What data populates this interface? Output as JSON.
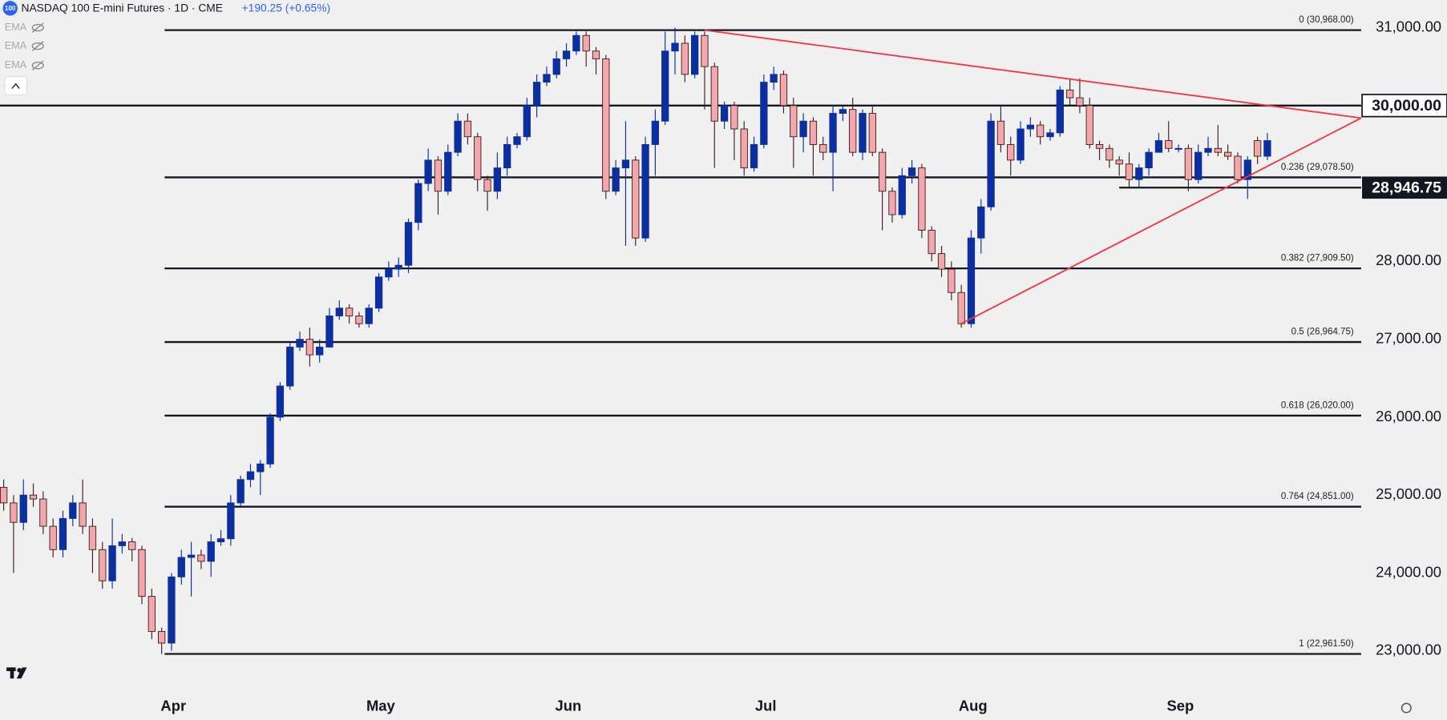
{
  "header": {
    "symbol_icon": "100",
    "title": "NASDAQ 100 E-mini Futures · 1D · CME",
    "change": "+190.25 (+0.65%)",
    "indicators": [
      "EMA",
      "EMA",
      "EMA"
    ]
  },
  "chart_data": {
    "type": "candlestick",
    "categories": [
      null,
      null,
      null,
      null,
      null,
      null,
      null,
      null,
      null,
      null,
      null,
      null,
      null,
      null,
      null,
      null,
      null,
      "Apr",
      null,
      null,
      null,
      null,
      null,
      null,
      null,
      null,
      null,
      null,
      null,
      null,
      null,
      null,
      null,
      null,
      null,
      null,
      null,
      null,
      "May",
      null,
      null,
      null,
      null,
      null,
      null,
      null,
      null,
      null,
      null,
      null,
      null,
      null,
      null,
      null,
      null,
      null,
      null,
      "Jun",
      null,
      null,
      null,
      null,
      null,
      null,
      null,
      null,
      null,
      null,
      null,
      null,
      null,
      null,
      null,
      null,
      null,
      null,
      null,
      "Jul",
      null,
      null,
      null,
      null,
      null,
      null,
      null,
      null,
      null,
      null,
      null,
      null,
      null,
      null,
      null,
      null,
      null,
      null,
      null,
      null,
      "Aug",
      null,
      null,
      null,
      null,
      null,
      null,
      null,
      null,
      null,
      null,
      null,
      null,
      null,
      null,
      null,
      null,
      null,
      null,
      null,
      null,
      "Sep",
      null,
      null,
      null,
      null,
      null,
      null,
      null,
      null,
      null
    ],
    "open": [
      25100,
      24900,
      24650,
      25000,
      24950,
      24600,
      24300,
      24700,
      24900,
      24600,
      24300,
      23900,
      24350,
      24400,
      24300,
      23700,
      23250,
      23100,
      23950,
      24200,
      24230,
      24150,
      24400,
      24440,
      24900,
      25200,
      25300,
      25400,
      26000,
      26400,
      26900,
      27000,
      26800,
      26900,
      27300,
      27400,
      27300,
      27200,
      27400,
      27800,
      27900,
      27950,
      28500,
      29000,
      29300,
      28900,
      29400,
      29800,
      29600,
      29050,
      28900,
      29200,
      29500,
      29600,
      30000,
      30300,
      30400,
      30600,
      30700,
      30900,
      30700,
      30600,
      28900,
      29200,
      29300,
      28300,
      29500,
      29800,
      30700,
      30800,
      30400,
      30900,
      30500,
      29800,
      30000,
      29700,
      29200,
      29500,
      30300,
      30400,
      30000,
      29600,
      29800,
      29500,
      29400,
      29900,
      29950,
      29400,
      29900,
      29400,
      28900,
      28600,
      29100,
      29200,
      28400,
      28100,
      27900,
      27600,
      27200,
      28300,
      28700,
      29800,
      29500,
      29300,
      29700,
      29750,
      29600,
      29650,
      30200,
      30100,
      30000,
      29500,
      29450,
      29300,
      29250,
      29050,
      29200,
      29400,
      29550,
      29450,
      29450,
      29050,
      29400,
      29450,
      29400,
      29350,
      29050,
      29550,
      29350
    ],
    "high": [
      25200,
      25000,
      25200,
      25150,
      25050,
      24700,
      24800,
      25000,
      25200,
      24700,
      24400,
      24700,
      24500,
      24450,
      24350,
      23800,
      23300,
      24000,
      24300,
      24400,
      24300,
      24500,
      24550,
      25000,
      25250,
      25400,
      25450,
      26050,
      26450,
      26950,
      27100,
      27150,
      27000,
      27400,
      27500,
      27450,
      27350,
      27450,
      27850,
      28000,
      28050,
      28550,
      29050,
      29450,
      29350,
      29500,
      29900,
      29900,
      29650,
      29100,
      29400,
      29600,
      29650,
      30100,
      30400,
      30500,
      30700,
      30800,
      30950,
      30950,
      30750,
      30650,
      29300,
      29800,
      29350,
      29600,
      29950,
      30950,
      31000,
      30900,
      30950,
      30950,
      30550,
      30050,
      30050,
      29800,
      29600,
      30400,
      30500,
      30450,
      30100,
      29900,
      29850,
      29600,
      30000,
      30000,
      30100,
      29950,
      30000,
      29450,
      28950,
      29200,
      29300,
      29250,
      28450,
      28200,
      28000,
      27700,
      28400,
      28800,
      29900,
      30000,
      29600,
      29800,
      29850,
      29800,
      29700,
      30250,
      30350,
      30350,
      30100,
      29550,
      29500,
      29350,
      29400,
      29250,
      29450,
      29650,
      29800,
      29500,
      29500,
      29500,
      29600,
      29750,
      29500,
      29400,
      29350,
      29600,
      29650
    ],
    "low": [
      24800,
      24000,
      24550,
      24850,
      24500,
      24200,
      24200,
      24600,
      24500,
      24000,
      23800,
      23800,
      24250,
      24150,
      23600,
      23150,
      22960,
      23000,
      23850,
      23700,
      24050,
      23950,
      24350,
      24350,
      24850,
      25100,
      25000,
      25350,
      25950,
      26350,
      26850,
      26650,
      26700,
      26900,
      27250,
      27200,
      27150,
      27150,
      27350,
      27750,
      27800,
      27850,
      28400,
      28900,
      28600,
      28850,
      29350,
      29500,
      28900,
      28650,
      28800,
      29100,
      29450,
      29550,
      29850,
      30250,
      30350,
      30500,
      30650,
      30500,
      30400,
      28800,
      28850,
      28200,
      28200,
      28250,
      29100,
      29750,
      30400,
      30300,
      30350,
      29950,
      29200,
      29700,
      29300,
      29100,
      29150,
      29450,
      30200,
      29900,
      29200,
      29400,
      29100,
      29300,
      28900,
      29800,
      29350,
      29300,
      29350,
      28400,
      28500,
      28550,
      29000,
      28300,
      28000,
      27800,
      27500,
      27150,
      27150,
      28100,
      28650,
      29400,
      29100,
      29250,
      29600,
      29500,
      29550,
      29600,
      30000,
      29900,
      29450,
      29300,
      29200,
      29100,
      28950,
      28950,
      29100,
      29400,
      29400,
      29400,
      28900,
      29000,
      29350,
      29350,
      29300,
      29000,
      28800,
      29250,
      29300
    ],
    "close": [
      24900,
      24650,
      25000,
      24950,
      24600,
      24300,
      24700,
      24900,
      24600,
      24300,
      23900,
      24350,
      24400,
      24300,
      23700,
      23250,
      23100,
      23950,
      24200,
      24230,
      24150,
      24400,
      24440,
      24900,
      25200,
      25300,
      25400,
      26000,
      26400,
      26900,
      27000,
      26800,
      26900,
      27300,
      27400,
      27300,
      27200,
      27400,
      27800,
      27900,
      27950,
      28500,
      29000,
      29300,
      28900,
      29400,
      29800,
      29600,
      29050,
      28900,
      29200,
      29500,
      29600,
      30000,
      30300,
      30400,
      30600,
      30700,
      30900,
      30700,
      30600,
      28900,
      29200,
      29300,
      28300,
      29500,
      29800,
      30700,
      30800,
      30400,
      30900,
      30500,
      29800,
      30000,
      29700,
      29200,
      29500,
      30300,
      30400,
      30000,
      29600,
      29800,
      29500,
      29400,
      29900,
      29950,
      29400,
      29900,
      29400,
      28900,
      28600,
      29100,
      29200,
      28400,
      28100,
      27900,
      27600,
      27200,
      28300,
      28700,
      29800,
      29500,
      29300,
      29700,
      29750,
      29600,
      29650,
      30200,
      30100,
      30000,
      29500,
      29450,
      29300,
      29250,
      29050,
      29200,
      29400,
      29550,
      29450,
      29450,
      29050,
      29400,
      29450,
      29400,
      29350,
      29050,
      29300,
      29350,
      29550
    ],
    "up_color": "#0c2fa0",
    "down_color": "#f4a6ad",
    "xlim": [
      -0.37,
      137.5
    ],
    "ylim": [
      22480,
      31355
    ],
    "yticks": [
      {
        "value": 31000,
        "label": "31,000.00"
      },
      {
        "value": 28000,
        "label": "28,000.00"
      },
      {
        "value": 27000,
        "label": "27,000.00"
      },
      {
        "value": 26000,
        "label": "26,000.00"
      },
      {
        "value": 25000,
        "label": "25,000.00"
      },
      {
        "value": 24000,
        "label": "24,000.00"
      },
      {
        "value": 23000,
        "label": "23,000.00"
      }
    ],
    "fib_start": 16.3,
    "fib_levels": [
      {
        "value": 30968,
        "label": "0 (30,968.00)"
      },
      {
        "value": 29078.5,
        "label": "0.236 (29,078.50)"
      },
      {
        "value": 27909.5,
        "label": "0.382 (27,909.50)"
      },
      {
        "value": 26964.75,
        "label": "0.5 (26,964.75)"
      },
      {
        "value": 26020,
        "label": "0.618 (26,020.00)"
      },
      {
        "value": 24851,
        "label": "0.764 (24,851.00)"
      },
      {
        "value": 22961.5,
        "label": "1 (22,961.50)"
      }
    ],
    "resistance": {
      "value": 30000,
      "label": "30,000.00"
    },
    "support": {
      "value": 28946.75,
      "label": "28,946.75",
      "x_start": 113
    },
    "trendline_color": "#f23645",
    "trendlines": [
      {
        "x": [
          71,
          137.5
        ],
        "y": [
          30968,
          29840
        ]
      },
      {
        "x": [
          97,
          137.5
        ],
        "y": [
          27200,
          29840
        ]
      }
    ]
  }
}
